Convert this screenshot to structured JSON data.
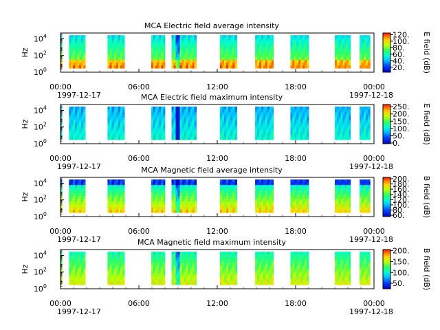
{
  "figure": {
    "x_ticks": [
      "00:00",
      "06:00",
      "12:00",
      "18:00",
      "00:00"
    ],
    "x_tick_hours": [
      0,
      6,
      12,
      18,
      24
    ],
    "date_start": "1997-12-17",
    "date_end": "1997-12-18"
  },
  "chart_data": [
    {
      "type": "heatmap",
      "title": "MCA  Electric field average intensity",
      "ylabel": "Hz",
      "y_scale": "log",
      "ylim": [
        1,
        50000
      ],
      "y_ticks": [
        {
          "base": "10",
          "exp": "0"
        },
        {
          "base": "10",
          "exp": "2"
        },
        {
          "base": "10",
          "exp": "4"
        }
      ],
      "xlim_hours": [
        0,
        24.0
      ],
      "colorbar": {
        "label": "E field (dB)",
        "range": [
          5,
          125
        ],
        "ticks": [
          120,
          100,
          80,
          60,
          40,
          20
        ],
        "tick_labels": [
          "120.",
          "100.",
          "80.",
          "60.",
          "40.",
          "20."
        ]
      },
      "segments_hours": [
        [
          0.0,
          0.1
        ],
        [
          0.65,
          1.9
        ],
        [
          3.6,
          4.9
        ],
        [
          6.95,
          8.0
        ],
        [
          8.5,
          10.4
        ],
        [
          12.2,
          13.5
        ],
        [
          14.9,
          16.3
        ],
        [
          17.6,
          19.0
        ],
        [
          21.0,
          22.2
        ],
        [
          22.9,
          23.7
        ]
      ]
    },
    {
      "type": "heatmap",
      "title": "MCA  Electric field maximum intensity",
      "ylabel": "Hz",
      "y_scale": "log",
      "ylim": [
        1,
        50000
      ],
      "y_ticks": [
        {
          "base": "10",
          "exp": "0"
        },
        {
          "base": "10",
          "exp": "2"
        },
        {
          "base": "10",
          "exp": "4"
        }
      ],
      "xlim_hours": [
        0,
        24.0
      ],
      "colorbar": {
        "label": "E field (dB)",
        "range": [
          -5,
          265
        ],
        "ticks": [
          250,
          200,
          150,
          100,
          50,
          0
        ],
        "tick_labels": [
          "250.",
          "200.",
          "150.",
          "100.",
          "50.",
          "0."
        ]
      },
      "segments_hours": [
        [
          0.0,
          0.1
        ],
        [
          0.65,
          1.9
        ],
        [
          3.6,
          4.9
        ],
        [
          6.95,
          8.0
        ],
        [
          8.5,
          10.4
        ],
        [
          12.2,
          13.5
        ],
        [
          14.9,
          16.3
        ],
        [
          17.6,
          19.0
        ],
        [
          21.0,
          22.2
        ],
        [
          22.9,
          23.7
        ]
      ]
    },
    {
      "type": "heatmap",
      "title": "MCA  Magnetic field average intensity",
      "ylabel": "Hz",
      "y_scale": "log",
      "ylim": [
        1,
        50000
      ],
      "y_ticks": [
        {
          "base": "10",
          "exp": "0"
        },
        {
          "base": "10",
          "exp": "2"
        },
        {
          "base": "10",
          "exp": "4"
        }
      ],
      "xlim_hours": [
        0,
        24.0
      ],
      "colorbar": {
        "label": "B field (dB)",
        "range": [
          55,
          205
        ],
        "ticks": [
          200,
          180,
          160,
          140,
          120,
          100,
          80,
          60
        ],
        "tick_labels": [
          "200.",
          "180.",
          "160.",
          "140.",
          "120.",
          "100.",
          "80.",
          "60."
        ]
      },
      "segments_hours": [
        [
          0.0,
          0.1
        ],
        [
          0.65,
          1.9
        ],
        [
          3.6,
          4.9
        ],
        [
          6.95,
          8.0
        ],
        [
          8.5,
          10.4
        ],
        [
          12.2,
          13.5
        ],
        [
          14.9,
          16.3
        ],
        [
          17.6,
          19.0
        ],
        [
          21.0,
          22.2
        ],
        [
          22.9,
          23.7
        ]
      ]
    },
    {
      "type": "heatmap",
      "title": "MCA  Magnetic field maximum intensity",
      "ylabel": "Hz",
      "y_scale": "log",
      "ylim": [
        1,
        50000
      ],
      "y_ticks": [
        {
          "base": "10",
          "exp": "0"
        },
        {
          "base": "10",
          "exp": "2"
        },
        {
          "base": "10",
          "exp": "4"
        }
      ],
      "xlim_hours": [
        0,
        24.0
      ],
      "colorbar": {
        "label": "B field (dB)",
        "range": [
          25,
          205
        ],
        "ticks": [
          200,
          150,
          100,
          50
        ],
        "tick_labels": [
          "200.",
          "150.",
          "100.",
          "50."
        ]
      },
      "segments_hours": [
        [
          0.0,
          0.1
        ],
        [
          0.65,
          1.9
        ],
        [
          3.6,
          4.9
        ],
        [
          6.95,
          8.0
        ],
        [
          8.5,
          10.4
        ],
        [
          12.2,
          13.5
        ],
        [
          14.9,
          16.3
        ],
        [
          17.6,
          19.0
        ],
        [
          21.0,
          22.2
        ],
        [
          22.9,
          23.7
        ]
      ]
    }
  ]
}
